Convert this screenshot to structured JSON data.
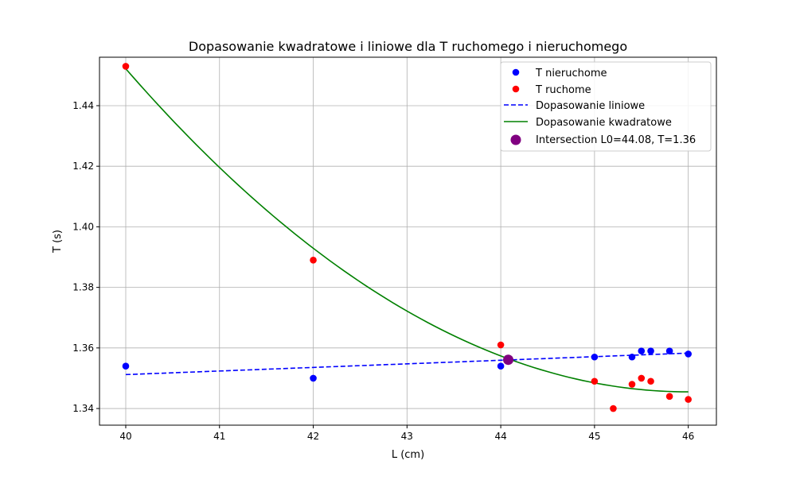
{
  "chart_data": {
    "type": "scatter",
    "title": "Dopasowanie kwadratowe i liniowe dla T ruchomego i nieruchomego",
    "xlabel": "L (cm)",
    "ylabel": "T (s)",
    "xlim": [
      39.72,
      46.3
    ],
    "ylim": [
      1.3345,
      1.456
    ],
    "xticks": [
      40,
      41,
      42,
      43,
      44,
      45,
      46
    ],
    "xtick_labels": [
      "40",
      "41",
      "42",
      "43",
      "44",
      "45",
      "46"
    ],
    "yticks": [
      1.34,
      1.36,
      1.38,
      1.4,
      1.42,
      1.44
    ],
    "ytick_labels": [
      "1.34",
      "1.36",
      "1.38",
      "1.40",
      "1.42",
      "1.44"
    ],
    "grid": true,
    "legend_position": "top-right",
    "series": [
      {
        "name": "T nieruchome",
        "kind": "scatter",
        "color": "#0000ff",
        "x": [
          40,
          42,
          44,
          45,
          45.4,
          45.5,
          45.6,
          45.8,
          46
        ],
        "y": [
          1.354,
          1.35,
          1.354,
          1.357,
          1.357,
          1.359,
          1.359,
          1.359,
          1.358
        ]
      },
      {
        "name": "T ruchome",
        "kind": "scatter",
        "color": "#ff0000",
        "x": [
          40,
          42,
          44,
          45,
          45.2,
          45.4,
          45.5,
          45.6,
          45.8,
          46
        ],
        "y": [
          1.453,
          1.389,
          1.361,
          1.349,
          1.34,
          1.348,
          1.35,
          1.349,
          1.344,
          1.343
        ]
      },
      {
        "name": "Dopasowanie liniowe",
        "kind": "line",
        "style": "dashed",
        "color": "#0000ff",
        "x": [
          40,
          46
        ],
        "y": [
          1.3512,
          1.3583
        ]
      },
      {
        "name": "Dopasowanie kwadratowe",
        "kind": "curve",
        "color": "#008000",
        "vertex_x": 46,
        "vertex_y": 1.3455,
        "x_start": 40,
        "y_start": 1.4522
      },
      {
        "name": "Intersection L0=44.08, T=1.36",
        "kind": "point",
        "color": "#800080",
        "x": [
          44.08
        ],
        "y": [
          1.3561
        ]
      }
    ]
  }
}
